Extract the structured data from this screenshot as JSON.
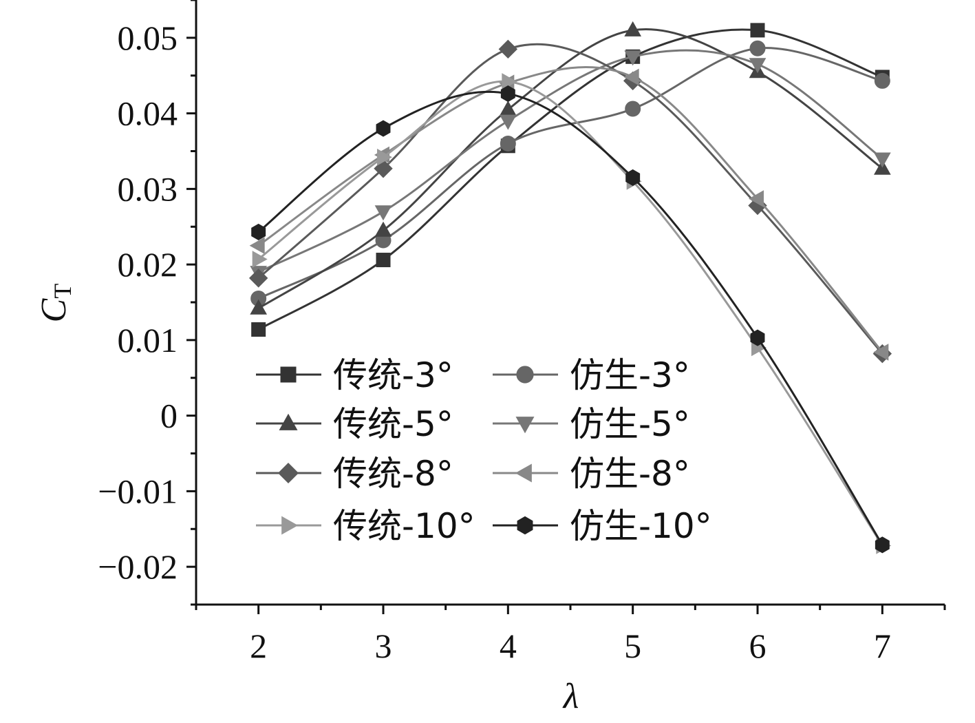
{
  "chart_data": {
    "type": "line",
    "xlabel": "λ",
    "ylabel": "C",
    "ylabel_subscript": "T",
    "xlim": [
      1.5,
      7.5
    ],
    "ylim": [
      -0.025,
      0.055
    ],
    "x_ticks": [
      2,
      3,
      4,
      5,
      6,
      7
    ],
    "x_tick_labels": [
      "2",
      "3",
      "4",
      "5",
      "6",
      "7"
    ],
    "y_ticks": [
      -0.02,
      -0.01,
      0,
      0.01,
      0.02,
      0.03,
      0.04,
      0.05
    ],
    "y_tick_labels": [
      "−0.02",
      "−0.01",
      "0",
      "0.01",
      "0.02",
      "0.03",
      "0.04",
      "0.05"
    ],
    "grid": false,
    "legend_position": "lower-left",
    "x": [
      2,
      3,
      4,
      5,
      6,
      7
    ],
    "series": [
      {
        "name": "传统-3°",
        "marker": "square",
        "color": "#333333",
        "values": [
          0.0114,
          0.0206,
          0.0357,
          0.0475,
          0.051,
          0.0448
        ]
      },
      {
        "name": "仿生-3°",
        "marker": "circle",
        "color": "#666666",
        "values": [
          0.0155,
          0.0232,
          0.036,
          0.0406,
          0.0486,
          0.0443
        ]
      },
      {
        "name": "传统-5°",
        "marker": "triangle-up",
        "color": "#444444",
        "values": [
          0.0142,
          0.0245,
          0.0405,
          0.051,
          0.0455,
          0.0327
        ]
      },
      {
        "name": "仿生-5°",
        "marker": "triangle-down",
        "color": "#777777",
        "values": [
          0.019,
          0.027,
          0.039,
          0.0475,
          0.0465,
          0.034
        ]
      },
      {
        "name": "传统-8°",
        "marker": "diamond",
        "color": "#5a5a5a",
        "values": [
          0.0182,
          0.0327,
          0.0485,
          0.0443,
          0.0278,
          0.0082
        ]
      },
      {
        "name": "仿生-8°",
        "marker": "triangle-left",
        "color": "#888888",
        "values": [
          0.0225,
          0.0345,
          0.044,
          0.0448,
          0.0287,
          0.0084
        ]
      },
      {
        "name": "传统-10°",
        "marker": "triangle-right",
        "color": "#999999",
        "values": [
          0.0207,
          0.0342,
          0.0442,
          0.031,
          0.009,
          -0.0172
        ]
      },
      {
        "name": "仿生-10°",
        "marker": "hexagon",
        "color": "#222222",
        "values": [
          0.0243,
          0.038,
          0.0426,
          0.0315,
          0.0103,
          -0.0171
        ]
      }
    ]
  }
}
